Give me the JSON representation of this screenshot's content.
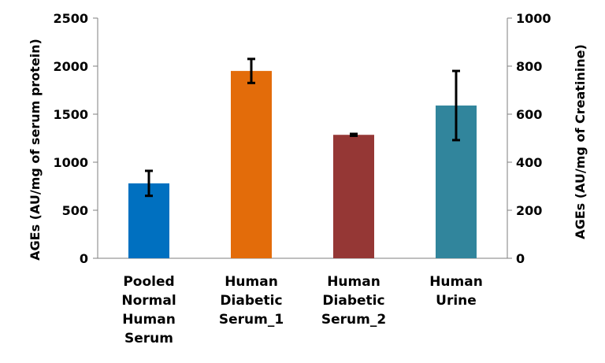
{
  "chart_data": {
    "type": "bar",
    "categories": [
      [
        "Pooled",
        "Normal",
        "Human",
        "Serum"
      ],
      [
        "Human",
        "Diabetic",
        "Serum_1"
      ],
      [
        "Human",
        "Diabetic",
        "Serum_2"
      ],
      [
        "Human",
        "Urine"
      ]
    ],
    "series": [
      {
        "values": [
          780,
          1950,
          1285,
          1590
        ],
        "errors": [
          130,
          125,
          10,
          360
        ],
        "colors": [
          "#0070c0",
          "#e36c0a",
          "#953735",
          "#31859c"
        ]
      }
    ],
    "ylabel": "AGEs (AU/mg of serum protein)",
    "ylabel_right": "AGEs (AU/mg of Creatinine)",
    "ylim": [
      0,
      2500
    ],
    "ylim_right": [
      0,
      1000
    ],
    "yticks": [
      0,
      500,
      1000,
      1500,
      2000,
      2500
    ],
    "yticks_right": [
      0,
      200,
      400,
      600,
      800,
      1000
    ],
    "grid": false,
    "legend": "none"
  }
}
